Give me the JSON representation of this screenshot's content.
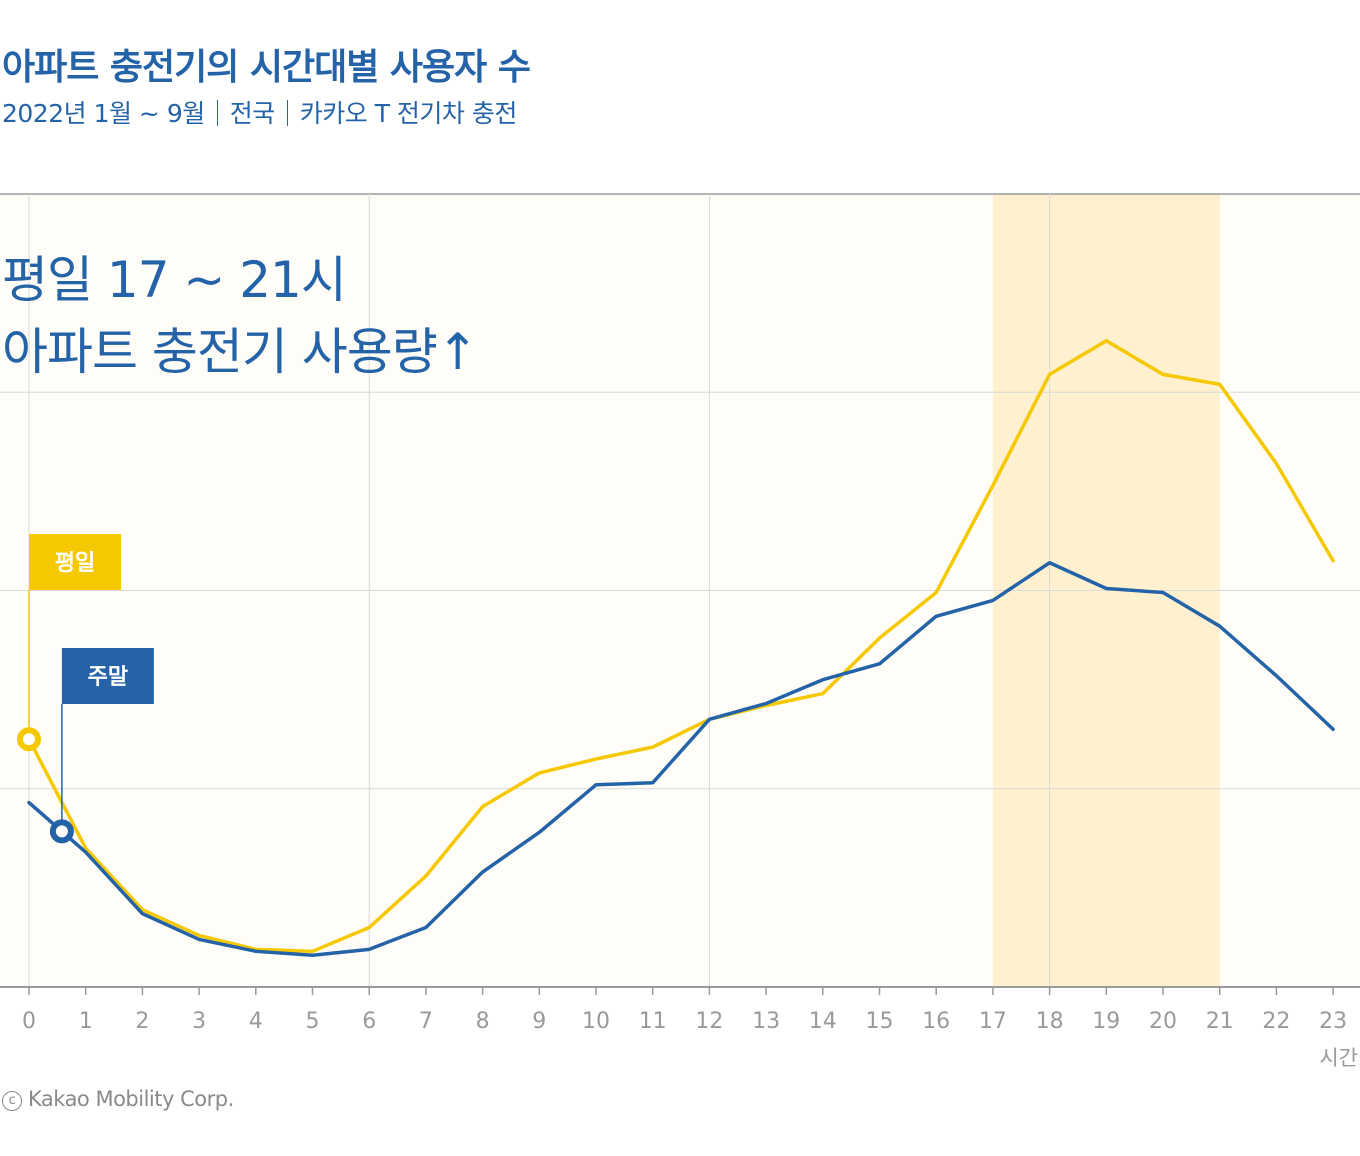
{
  "header": {
    "title": "아파트 충전기의 시간대별 사용자 수",
    "subtitle_parts": [
      "2022년 1월 ~ 9월",
      "전국",
      "카카오 T 전기차 충전"
    ]
  },
  "annotation": {
    "line1": "평일 17 ~ 21시",
    "line2": "아파트 충전기 사용량↑"
  },
  "copyright": {
    "mark": "c",
    "text": "Kakao Mobility Corp."
  },
  "colors": {
    "weekday": "#f5c800",
    "weekend": "#2563a8",
    "plot_background": "#fffdf7",
    "highlight": "#fff1cf",
    "grid": "#d9d9d9",
    "axis": "#9a9a9a",
    "tick_text": "#9a9a9a"
  },
  "chart_data": {
    "type": "line",
    "x": [
      0,
      1,
      2,
      3,
      4,
      5,
      6,
      7,
      8,
      9,
      10,
      11,
      12,
      13,
      14,
      15,
      16,
      17,
      18,
      19,
      20,
      21,
      22,
      23
    ],
    "xlabel": "시간",
    "ylabel": "",
    "ylim": [
      0,
      4
    ],
    "grid": true,
    "highlight_range": [
      17,
      21
    ],
    "series": [
      {
        "name": "평일",
        "color": "#f5c800",
        "values": [
          1.25,
          0.7,
          0.39,
          0.26,
          0.19,
          0.18,
          0.3,
          0.56,
          0.91,
          1.08,
          1.15,
          1.21,
          1.35,
          1.42,
          1.48,
          1.76,
          1.99,
          2.53,
          3.09,
          3.26,
          3.09,
          3.04,
          2.64,
          2.15
        ]
      },
      {
        "name": "주말",
        "color": "#2563a8",
        "values": [
          0.93,
          0.68,
          0.37,
          0.24,
          0.18,
          0.16,
          0.19,
          0.3,
          0.58,
          0.78,
          1.02,
          1.03,
          1.35,
          1.43,
          1.55,
          1.63,
          1.87,
          1.95,
          2.14,
          2.01,
          1.99,
          1.82,
          1.57,
          1.3
        ]
      }
    ]
  }
}
